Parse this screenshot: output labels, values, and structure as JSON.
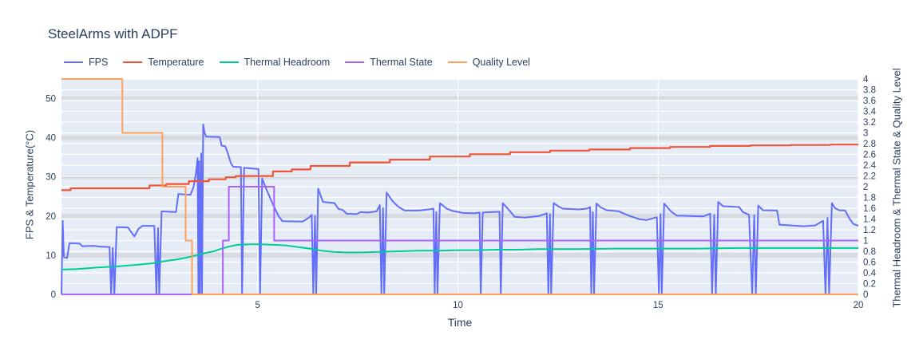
{
  "header": {
    "title": "SteelArms with ADPF"
  },
  "chart_data": {
    "type": "line",
    "title": "SteelArms with ADPF",
    "xlabel": "Time",
    "ylabel_left": "FPS & Temperature(°C)",
    "ylabel_right": "Thermal Headroom & Thermal State & Quality Level",
    "legend_position": "top",
    "grid": true,
    "plot_bg": "#e5ecf6",
    "band_color": "#d8dbe2",
    "grid_color": "#ffffff",
    "tick_color": "#2a3f5f",
    "x_range": [
      0.1,
      20
    ],
    "y_left_range": [
      0,
      55
    ],
    "y_right_range": [
      0,
      4
    ],
    "x_ticks": [
      "5",
      "10",
      "15",
      "20"
    ],
    "y_left_ticks": [
      "0",
      "10",
      "20",
      "30",
      "40",
      "50"
    ],
    "y_right_ticks": [
      "0",
      "0.2",
      "0.4",
      "0.6",
      "0.8",
      "1",
      "1.2",
      "1.4",
      "1.6",
      "1.8",
      "2",
      "2.2",
      "2.4",
      "2.6",
      "2.8",
      "3",
      "3.2",
      "3.4",
      "3.6",
      "3.8",
      "4"
    ],
    "series": [
      {
        "name": "FPS",
        "color": "#636efa",
        "axis": "left",
        "width": 2,
        "points": [
          [
            0.1,
            0
          ],
          [
            0.13,
            18.8
          ],
          [
            0.16,
            9.5
          ],
          [
            0.24,
            9.3
          ],
          [
            0.3,
            13.1
          ],
          [
            0.55,
            13
          ],
          [
            0.62,
            12.3
          ],
          [
            0.9,
            12.4
          ],
          [
            1.05,
            12.2
          ],
          [
            1.3,
            12.1
          ],
          [
            1.34,
            0
          ],
          [
            1.38,
            11.9
          ],
          [
            1.42,
            0
          ],
          [
            1.48,
            17.2
          ],
          [
            1.76,
            17.1
          ],
          [
            1.84,
            15.9
          ],
          [
            1.92,
            14.8
          ],
          [
            2.02,
            16.7
          ],
          [
            2.12,
            17.5
          ],
          [
            2.42,
            17.5
          ],
          [
            2.47,
            0
          ],
          [
            2.51,
            16.9
          ],
          [
            2.54,
            0
          ],
          [
            2.6,
            21.2
          ],
          [
            2.96,
            21
          ],
          [
            3.02,
            25.6
          ],
          [
            3.32,
            25.4
          ],
          [
            3.4,
            27.5
          ],
          [
            3.46,
            31
          ],
          [
            3.5,
            34.8
          ],
          [
            3.52,
            0
          ],
          [
            3.54,
            34
          ],
          [
            3.56,
            0
          ],
          [
            3.59,
            36
          ],
          [
            3.61,
            0
          ],
          [
            3.64,
            43.4
          ],
          [
            3.67,
            41.5
          ],
          [
            3.71,
            40.3
          ],
          [
            4.05,
            40.2
          ],
          [
            4.1,
            38
          ],
          [
            4.19,
            37.8
          ],
          [
            4.25,
            36.2
          ],
          [
            4.33,
            33.5
          ],
          [
            4.39,
            32.6
          ],
          [
            4.58,
            32.5
          ],
          [
            4.61,
            0
          ],
          [
            4.66,
            32.3
          ],
          [
            5.02,
            32
          ],
          [
            5.06,
            0
          ],
          [
            5.11,
            29.6
          ],
          [
            5.23,
            26.5
          ],
          [
            5.38,
            23
          ],
          [
            5.52,
            20
          ],
          [
            5.62,
            18.7
          ],
          [
            6.12,
            18.6
          ],
          [
            6.27,
            19.5
          ],
          [
            6.35,
            20.3
          ],
          [
            6.39,
            0
          ],
          [
            6.43,
            20
          ],
          [
            6.46,
            0
          ],
          [
            6.51,
            27
          ],
          [
            6.63,
            23.6
          ],
          [
            6.92,
            23.3
          ],
          [
            7.02,
            21.8
          ],
          [
            7.12,
            21.6
          ],
          [
            7.22,
            20.6
          ],
          [
            7.47,
            20.5
          ],
          [
            7.57,
            21
          ],
          [
            7.77,
            20.9
          ],
          [
            7.97,
            21.2
          ],
          [
            8.05,
            22.8
          ],
          [
            8.09,
            0
          ],
          [
            8.13,
            22
          ],
          [
            8.16,
            0
          ],
          [
            8.22,
            26
          ],
          [
            8.37,
            23.8
          ],
          [
            8.52,
            22.3
          ],
          [
            8.67,
            21.4
          ],
          [
            9.02,
            21.4
          ],
          [
            9.27,
            21.7
          ],
          [
            9.39,
            21.9
          ],
          [
            9.42,
            0
          ],
          [
            9.46,
            21
          ],
          [
            9.49,
            0
          ],
          [
            9.55,
            23.3
          ],
          [
            9.72,
            21.9
          ],
          [
            9.87,
            21.3
          ],
          [
            10.12,
            20.8
          ],
          [
            10.42,
            20.7
          ],
          [
            10.54,
            20.9
          ],
          [
            10.57,
            0
          ],
          [
            10.62,
            20.9
          ],
          [
            10.82,
            21
          ],
          [
            11.04,
            21.1
          ],
          [
            11.07,
            0
          ],
          [
            11.12,
            23.3
          ],
          [
            11.27,
            21.6
          ],
          [
            11.42,
            19.8
          ],
          [
            11.67,
            19.6
          ],
          [
            12.02,
            20
          ],
          [
            12.22,
            20.7
          ],
          [
            12.26,
            0
          ],
          [
            12.3,
            20.5
          ],
          [
            12.33,
            0
          ],
          [
            12.39,
            23.3
          ],
          [
            12.52,
            22.4
          ],
          [
            12.62,
            21.9
          ],
          [
            13.02,
            21.7
          ],
          [
            13.22,
            21.9
          ],
          [
            13.3,
            22.3
          ],
          [
            13.33,
            0
          ],
          [
            13.37,
            21
          ],
          [
            13.4,
            0
          ],
          [
            13.46,
            23.2
          ],
          [
            13.57,
            22.2
          ],
          [
            13.72,
            21.5
          ],
          [
            14.02,
            21.2
          ],
          [
            14.22,
            20.3
          ],
          [
            14.52,
            19.2
          ],
          [
            14.72,
            19
          ],
          [
            14.97,
            19.7
          ],
          [
            15.02,
            0
          ],
          [
            15.06,
            20.5
          ],
          [
            15.09,
            0
          ],
          [
            15.15,
            23.2
          ],
          [
            15.32,
            21.2
          ],
          [
            15.47,
            20.1
          ],
          [
            15.82,
            20
          ],
          [
            16.12,
            19.9
          ],
          [
            16.3,
            20.6
          ],
          [
            16.35,
            0
          ],
          [
            16.4,
            20.3
          ],
          [
            16.44,
            0
          ],
          [
            16.5,
            23.6
          ],
          [
            16.62,
            22.5
          ],
          [
            17.02,
            22.3
          ],
          [
            17.12,
            21
          ],
          [
            17.27,
            20.3
          ],
          [
            17.35,
            0
          ],
          [
            17.4,
            20.2
          ],
          [
            17.44,
            0
          ],
          [
            17.5,
            22.7
          ],
          [
            17.62,
            21.5
          ],
          [
            17.97,
            21.4
          ],
          [
            18.03,
            17.8
          ],
          [
            18.62,
            17.4
          ],
          [
            18.92,
            17.6
          ],
          [
            19.12,
            18.8
          ],
          [
            19.18,
            0
          ],
          [
            19.23,
            19.5
          ],
          [
            19.27,
            0
          ],
          [
            19.34,
            23.3
          ],
          [
            19.42,
            22
          ],
          [
            19.52,
            21.5
          ],
          [
            19.67,
            21.4
          ],
          [
            19.77,
            19.5
          ],
          [
            19.87,
            18
          ],
          [
            20,
            17.5
          ]
        ]
      },
      {
        "name": "Temperature",
        "color": "#ef553b",
        "axis": "left",
        "width": 2.2,
        "points": [
          [
            0.1,
            26.6
          ],
          [
            0.33,
            26.6
          ],
          [
            0.33,
            27.1
          ],
          [
            2.3,
            27.1
          ],
          [
            2.3,
            27.8
          ],
          [
            2.72,
            27.8
          ],
          [
            2.72,
            28.2
          ],
          [
            3.28,
            28.2
          ],
          [
            3.28,
            28.9
          ],
          [
            3.78,
            28.9
          ],
          [
            3.78,
            29.4
          ],
          [
            4.2,
            29.4
          ],
          [
            4.2,
            29.9
          ],
          [
            4.45,
            29.9
          ],
          [
            4.45,
            30.2
          ],
          [
            5.38,
            30.2
          ],
          [
            5.38,
            31.4
          ],
          [
            5.85,
            31.4
          ],
          [
            5.85,
            31.9
          ],
          [
            6.32,
            31.9
          ],
          [
            6.32,
            32.8
          ],
          [
            7.3,
            32.8
          ],
          [
            7.3,
            33.7
          ],
          [
            8.3,
            33.7
          ],
          [
            8.3,
            34.4
          ],
          [
            9.3,
            34.4
          ],
          [
            9.3,
            35.2
          ],
          [
            10.3,
            35.2
          ],
          [
            10.3,
            35.8
          ],
          [
            11.3,
            35.8
          ],
          [
            11.3,
            36.3
          ],
          [
            12.3,
            36.3
          ],
          [
            12.3,
            36.7
          ],
          [
            13.28,
            36.7
          ],
          [
            13.28,
            37
          ],
          [
            14.3,
            37
          ],
          [
            14.3,
            37.35
          ],
          [
            15.3,
            37.35
          ],
          [
            15.3,
            37.65
          ],
          [
            16.3,
            37.65
          ],
          [
            16.3,
            37.9
          ],
          [
            17.3,
            37.9
          ],
          [
            17.3,
            38.05
          ],
          [
            18.3,
            38.05
          ],
          [
            18.3,
            38.15
          ],
          [
            19.3,
            38.15
          ],
          [
            19.3,
            38.25
          ],
          [
            20,
            38.25
          ]
        ]
      },
      {
        "name": "Thermal Headroom",
        "color": "#00cc96",
        "axis": "right",
        "width": 2,
        "points": [
          [
            0.1,
            0.46
          ],
          [
            0.5,
            0.47
          ],
          [
            1,
            0.5
          ],
          [
            1.5,
            0.52
          ],
          [
            2,
            0.55
          ],
          [
            2.4,
            0.58
          ],
          [
            2.7,
            0.62
          ],
          [
            3,
            0.65
          ],
          [
            3.2,
            0.68
          ],
          [
            3.5,
            0.73
          ],
          [
            3.7,
            0.77
          ],
          [
            3.9,
            0.8
          ],
          [
            4.1,
            0.85
          ],
          [
            4.3,
            0.89
          ],
          [
            4.5,
            0.92
          ],
          [
            4.8,
            0.93
          ],
          [
            5.1,
            0.93
          ],
          [
            5.4,
            0.92
          ],
          [
            5.7,
            0.91
          ],
          [
            6,
            0.88
          ],
          [
            6.3,
            0.85
          ],
          [
            6.6,
            0.81
          ],
          [
            6.9,
            0.79
          ],
          [
            7.2,
            0.78
          ],
          [
            7.6,
            0.78
          ],
          [
            8,
            0.79
          ],
          [
            8.5,
            0.8
          ],
          [
            9,
            0.81
          ],
          [
            9.5,
            0.81
          ],
          [
            10,
            0.82
          ],
          [
            10.5,
            0.82
          ],
          [
            11,
            0.83
          ],
          [
            11.5,
            0.83
          ],
          [
            12,
            0.84
          ],
          [
            13,
            0.84
          ],
          [
            14,
            0.85
          ],
          [
            15,
            0.85
          ],
          [
            16,
            0.85
          ],
          [
            17,
            0.86
          ],
          [
            18,
            0.86
          ],
          [
            19,
            0.86
          ],
          [
            20,
            0.86
          ]
        ]
      },
      {
        "name": "Thermal State",
        "color": "#ab63fa",
        "axis": "right",
        "width": 2,
        "points": [
          [
            0.1,
            0
          ],
          [
            4.13,
            0
          ],
          [
            4.13,
            1
          ],
          [
            4.28,
            1
          ],
          [
            4.28,
            2
          ],
          [
            5.41,
            2
          ],
          [
            5.41,
            1
          ],
          [
            20,
            1
          ]
        ]
      },
      {
        "name": "Quality Level",
        "color": "#ffa15a",
        "axis": "right",
        "width": 2,
        "points": [
          [
            0.1,
            4
          ],
          [
            1.62,
            4
          ],
          [
            1.62,
            3
          ],
          [
            2.62,
            3
          ],
          [
            2.62,
            2
          ],
          [
            3.2,
            2
          ],
          [
            3.2,
            1
          ],
          [
            3.36,
            1
          ],
          [
            3.36,
            0
          ],
          [
            20,
            0
          ]
        ]
      }
    ]
  }
}
